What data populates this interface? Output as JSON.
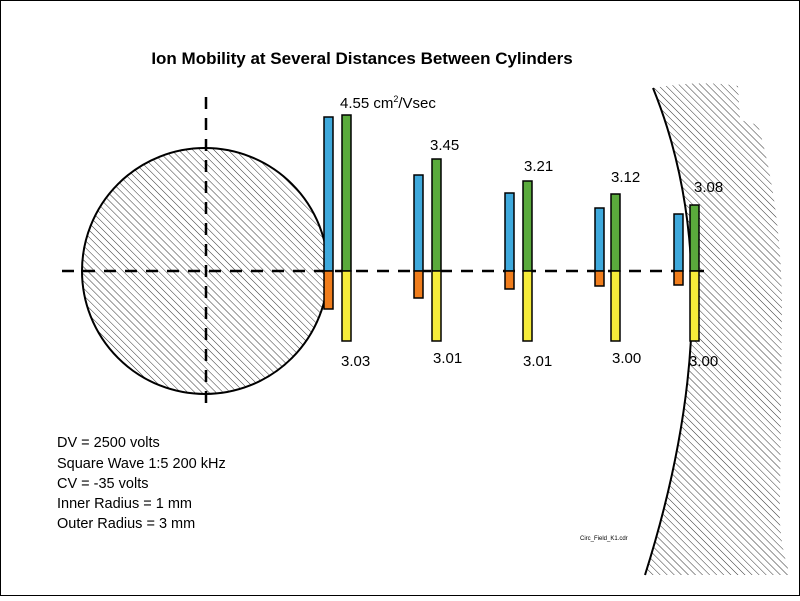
{
  "title": "Ion Mobility at Several Distances Between Cylinders",
  "unit_label": {
    "prefix": "4.55 cm",
    "superscript": "2",
    "suffix": "/Vsec"
  },
  "top_values": [
    "4.55",
    "3.45",
    "3.21",
    "3.12",
    "3.08"
  ],
  "bottom_values": [
    "3.03",
    "3.01",
    "3.01",
    "3.00",
    "3.00"
  ],
  "parameters": [
    "DV = 2500 volts",
    "Square Wave 1:5 200 kHz",
    "CV = -35 volts",
    "Inner Radius = 1 mm",
    "Outer Radius = 3 mm"
  ],
  "filename": "Circ_Field_K1.cdr",
  "colors": {
    "blue": "#3fa9dc",
    "green": "#5aaa3c",
    "orange": "#f07d1c",
    "yellow": "#f6ec3a",
    "hatch": "#000000"
  }
}
